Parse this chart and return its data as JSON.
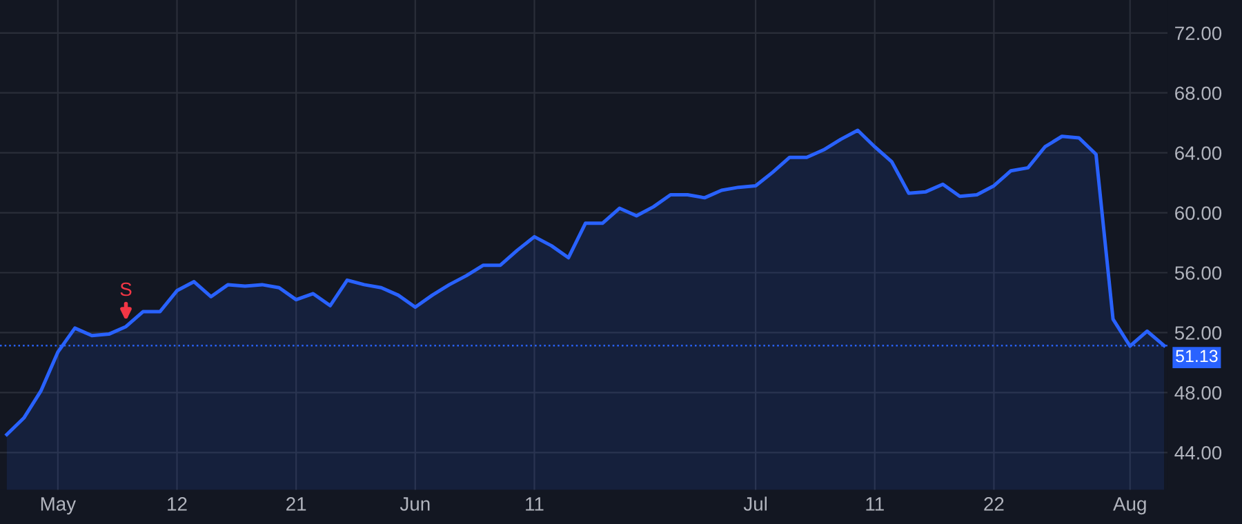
{
  "chart_data": {
    "type": "area",
    "categories": [
      null,
      null,
      null,
      "May",
      null,
      null,
      null,
      null,
      null,
      null,
      "12",
      null,
      null,
      null,
      null,
      null,
      null,
      "21",
      null,
      null,
      null,
      null,
      null,
      null,
      "Jun",
      null,
      null,
      null,
      null,
      null,
      null,
      "11",
      null,
      null,
      null,
      null,
      null,
      null,
      null,
      null,
      null,
      null,
      null,
      null,
      "Jul",
      null,
      null,
      null,
      null,
      null,
      null,
      "11",
      null,
      null,
      null,
      null,
      null,
      null,
      "22",
      null,
      null,
      null,
      null,
      null,
      null,
      null,
      "Aug",
      null,
      null
    ],
    "series": [
      {
        "color": "#2962ff",
        "values": [
          45.2,
          46.3,
          48.1,
          50.7,
          52.3,
          51.8,
          51.9,
          52.4,
          53.4,
          53.4,
          54.8,
          55.4,
          54.4,
          55.2,
          55.1,
          55.2,
          55.0,
          54.2,
          54.6,
          53.8,
          55.5,
          55.2,
          55.0,
          54.5,
          53.7,
          54.5,
          55.2,
          55.8,
          56.5,
          56.5,
          57.5,
          58.4,
          57.8,
          57.0,
          59.3,
          59.3,
          60.3,
          59.8,
          60.4,
          61.2,
          61.2,
          61.0,
          61.5,
          61.7,
          61.8,
          62.7,
          63.7,
          63.7,
          64.2,
          64.9,
          65.5,
          64.4,
          63.4,
          61.3,
          61.4,
          61.9,
          61.1,
          61.2,
          61.8,
          62.8,
          63.0,
          64.4,
          65.1,
          65.0,
          63.9,
          52.9,
          51.1,
          52.1,
          51.13
        ]
      }
    ],
    "ylim": [
      41.5,
      74.2
    ],
    "yticks": [
      {
        "value": 44,
        "label": "44.00"
      },
      {
        "value": 48,
        "label": "48.00"
      },
      {
        "value": 52,
        "label": "52.00"
      },
      {
        "value": 56,
        "label": "56.00"
      },
      {
        "value": 60,
        "label": "60.00"
      },
      {
        "value": 64,
        "label": "64.00"
      },
      {
        "value": 68,
        "label": "68.00"
      },
      {
        "value": 72,
        "label": "72.00"
      }
    ],
    "grid": true,
    "ref_lines": [
      {
        "axis": "y",
        "value": 51.13,
        "label": "51.13",
        "color": "#2962ff",
        "line_style": "dotted"
      }
    ],
    "annotations": [
      {
        "text": "S",
        "y": 52.4
      }
    ]
  }
}
